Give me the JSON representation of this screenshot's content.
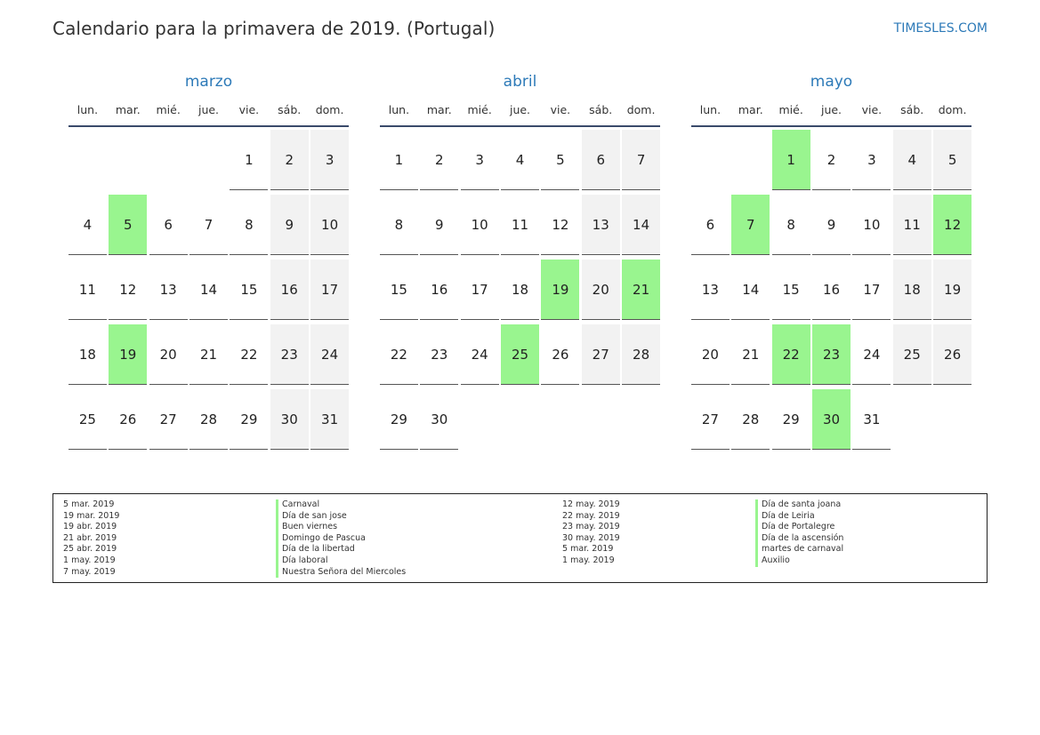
{
  "header": {
    "title": "Calendario para la primavera de 2019. (Portugal)",
    "site": "TIMESLES.COM"
  },
  "colors": {
    "accent": "#2d7ab8",
    "holiday": "#99f58f",
    "weekend": "#f2f2f2"
  },
  "weekdays": [
    "lun.",
    "mar.",
    "mié.",
    "jue.",
    "vie.",
    "sáb.",
    "dom."
  ],
  "months": [
    {
      "name": "marzo",
      "weeks": [
        [
          null,
          null,
          null,
          null,
          1,
          2,
          3
        ],
        [
          4,
          5,
          6,
          7,
          8,
          9,
          10
        ],
        [
          11,
          12,
          13,
          14,
          15,
          16,
          17
        ],
        [
          18,
          19,
          20,
          21,
          22,
          23,
          24
        ],
        [
          25,
          26,
          27,
          28,
          29,
          30,
          31
        ]
      ],
      "holidays": [
        5,
        19
      ]
    },
    {
      "name": "abril",
      "weeks": [
        [
          1,
          2,
          3,
          4,
          5,
          6,
          7
        ],
        [
          8,
          9,
          10,
          11,
          12,
          13,
          14
        ],
        [
          15,
          16,
          17,
          18,
          19,
          20,
          21
        ],
        [
          22,
          23,
          24,
          25,
          26,
          27,
          28
        ],
        [
          29,
          30,
          null,
          null,
          null,
          null,
          null
        ]
      ],
      "holidays": [
        19,
        21,
        25
      ]
    },
    {
      "name": "mayo",
      "weeks": [
        [
          null,
          null,
          1,
          2,
          3,
          4,
          5
        ],
        [
          6,
          7,
          8,
          9,
          10,
          11,
          12
        ],
        [
          13,
          14,
          15,
          16,
          17,
          18,
          19
        ],
        [
          20,
          21,
          22,
          23,
          24,
          25,
          26
        ],
        [
          27,
          28,
          29,
          30,
          31,
          null,
          null
        ]
      ],
      "holidays": [
        1,
        7,
        12,
        22,
        23,
        30
      ]
    }
  ],
  "legend": {
    "left_dates": [
      "5 mar. 2019",
      "19 mar. 2019",
      "19 abr. 2019",
      "21 abr. 2019",
      "25 abr. 2019",
      "1 may. 2019",
      "7 may. 2019"
    ],
    "left_names": [
      "Carnaval",
      "Día de san jose",
      "Buen viernes",
      "Domingo de Pascua",
      "Día de la libertad",
      "Día laboral",
      "Nuestra Señora del Miercoles"
    ],
    "right_dates": [
      "12 may. 2019",
      "22 may. 2019",
      "23 may. 2019",
      "30 may. 2019",
      "5 mar. 2019",
      "1 may. 2019"
    ],
    "right_names": [
      "Día de santa joana",
      "Día de Leiria",
      "Día de Portalegre",
      "Día de la ascensión",
      "martes de carnaval",
      "Auxilio"
    ]
  }
}
